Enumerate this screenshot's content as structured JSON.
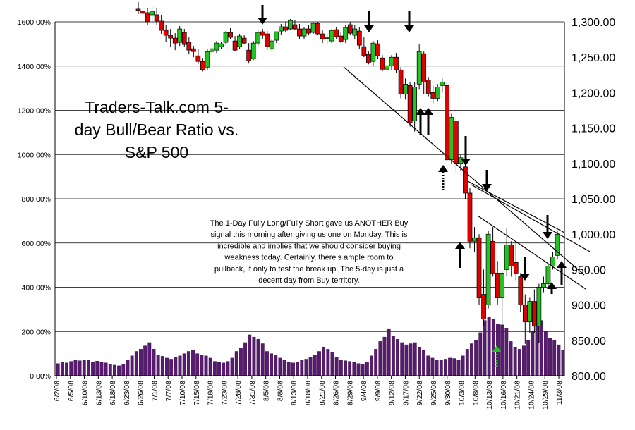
{
  "chart_data": {
    "type": "combo-candlestick-bar",
    "title_lines": [
      "Traders-Talk.com 5-",
      "day Bull/Bear Ratio vs.",
      "S&P 500"
    ],
    "annotation_lines": [
      "The 1-Day Fully Long/Fully Short gave us ANOTHER Buy",
      "signal this morning after giving us one on Monday. This is",
      "incredible and implies that we should consider buying",
      "weakness today. Certainly, there's ample room to",
      "pullback, if only to test the break up. The 5-day is just a",
      "decent day from Buy territory."
    ],
    "grid": true,
    "left_axis": {
      "min": 0,
      "max": 1600,
      "unit": "%",
      "ticks": [
        0,
        200,
        400,
        600,
        800,
        1000,
        1200,
        1400,
        1600
      ],
      "tick_labels": [
        "0.00%",
        "200.00%",
        "400.00%",
        "600.00%",
        "800.00%",
        "1000.00%",
        "1200.00%",
        "1400.00%",
        "1600.00%"
      ]
    },
    "right_axis": {
      "min": 800,
      "max": 1300,
      "ticks": [
        800,
        850,
        900,
        950,
        1000,
        1050,
        1100,
        1150,
        1200,
        1250,
        1300
      ],
      "tick_labels": [
        "800.00",
        "850.00",
        "900.00",
        "950.00",
        "1,000.00",
        "1,050.00",
        "1,100.00",
        "1,150.00",
        "1,200.00",
        "1,250.00",
        "1,300.00"
      ]
    },
    "x_tick_labels": [
      "6/2/08",
      "6/5/08",
      "6/10/08",
      "6/13/08",
      "6/18/08",
      "6/23/08",
      "6/26/08",
      "7/1/08",
      "7/7/08",
      "7/10/08",
      "7/15/08",
      "7/18/08",
      "7/23/08",
      "7/28/08",
      "7/31/08",
      "8/5/08",
      "8/8/08",
      "8/13/08",
      "8/18/08",
      "8/21/08",
      "8/26/08",
      "8/29/08",
      "9/4/08",
      "9/9/08",
      "9/12/08",
      "9/17/08",
      "9/22/08",
      "9/25/08",
      "9/30/08",
      "10/3/08",
      "10/8/08",
      "10/13/08",
      "10/16/08",
      "10/21/08",
      "10/24/08",
      "10/29/08",
      "11/3/08"
    ],
    "bull_bear_ratio_pct": [
      55,
      60,
      58,
      65,
      70,
      68,
      72,
      70,
      62,
      66,
      60,
      58,
      52,
      48,
      45,
      50,
      70,
      90,
      110,
      120,
      135,
      150,
      120,
      95,
      88,
      80,
      75,
      85,
      90,
      100,
      110,
      115,
      100,
      95,
      90,
      80,
      65,
      60,
      58,
      65,
      80,
      110,
      125,
      150,
      185,
      175,
      165,
      145,
      110,
      100,
      95,
      80,
      70,
      60,
      58,
      62,
      70,
      75,
      85,
      95,
      110,
      130,
      120,
      105,
      85,
      70,
      68,
      65,
      60,
      55,
      52,
      62,
      90,
      120,
      155,
      175,
      210,
      180,
      165,
      150,
      140,
      145,
      150,
      130,
      115,
      90,
      80,
      70,
      72,
      75,
      80,
      78,
      70,
      90,
      120,
      145,
      160,
      195,
      250,
      265,
      255,
      235,
      230,
      215,
      155,
      130,
      120,
      135,
      160,
      200,
      225,
      250,
      200,
      170,
      160,
      140,
      115
    ],
    "sp500_ohlc": [
      [
        1318,
        1328,
        1311,
        1316
      ],
      [
        1315,
        1327,
        1308,
        1312
      ],
      [
        1313,
        1320,
        1295,
        1300
      ],
      [
        1310,
        1322,
        1298,
        1315
      ],
      [
        1310,
        1320,
        1296,
        1301
      ],
      [
        1301,
        1310,
        1283,
        1288
      ],
      [
        1288,
        1296,
        1272,
        1281
      ],
      [
        1281,
        1290,
        1265,
        1277
      ],
      [
        1277,
        1284,
        1260,
        1270
      ],
      [
        1271,
        1294,
        1266,
        1290
      ],
      [
        1285,
        1290,
        1265,
        1268
      ],
      [
        1271,
        1278,
        1254,
        1260
      ],
      [
        1262,
        1266,
        1250,
        1258
      ],
      [
        1252,
        1262,
        1240,
        1244
      ],
      [
        1244,
        1249,
        1230,
        1232
      ],
      [
        1236,
        1262,
        1232,
        1258
      ],
      [
        1258,
        1265,
        1250,
        1262
      ],
      [
        1260,
        1273,
        1256,
        1270
      ],
      [
        1265,
        1272,
        1262,
        1269
      ],
      [
        1271,
        1287,
        1268,
        1285
      ],
      [
        1285,
        1291,
        1275,
        1278
      ],
      [
        1273,
        1280,
        1258,
        1260
      ],
      [
        1265,
        1283,
        1262,
        1280
      ],
      [
        1277,
        1282,
        1268,
        1270
      ],
      [
        1260,
        1270,
        1241,
        1245
      ],
      [
        1248,
        1273,
        1246,
        1270
      ],
      [
        1270,
        1288,
        1266,
        1285
      ],
      [
        1286,
        1290,
        1276,
        1281
      ],
      [
        1283,
        1287,
        1260,
        1265
      ],
      [
        1262,
        1276,
        1259,
        1273
      ],
      [
        1274,
        1286,
        1270,
        1286
      ],
      [
        1287,
        1297,
        1282,
        1293
      ],
      [
        1293,
        1300,
        1285,
        1288
      ],
      [
        1290,
        1304,
        1288,
        1302
      ],
      [
        1296,
        1302,
        1288,
        1290
      ],
      [
        1290,
        1297,
        1276,
        1280
      ],
      [
        1280,
        1293,
        1276,
        1290
      ],
      [
        1290,
        1296,
        1282,
        1284
      ],
      [
        1285,
        1300,
        1283,
        1298
      ],
      [
        1298,
        1300,
        1281,
        1283
      ],
      [
        1283,
        1288,
        1270,
        1276
      ],
      [
        1278,
        1283,
        1268,
        1278
      ],
      [
        1273,
        1290,
        1270,
        1288
      ],
      [
        1289,
        1293,
        1276,
        1279
      ],
      [
        1280,
        1285,
        1270,
        1272
      ],
      [
        1275,
        1296,
        1270,
        1292
      ],
      [
        1296,
        1300,
        1281,
        1284
      ],
      [
        1281,
        1296,
        1275,
        1290
      ],
      [
        1287,
        1292,
        1262,
        1267
      ],
      [
        1265,
        1278,
        1250,
        1252
      ],
      [
        1254,
        1258,
        1240,
        1242
      ],
      [
        1244,
        1273,
        1238,
        1270
      ],
      [
        1269,
        1274,
        1248,
        1252
      ],
      [
        1249,
        1253,
        1230,
        1233
      ],
      [
        1233,
        1245,
        1226,
        1238
      ],
      [
        1238,
        1253,
        1232,
        1250
      ],
      [
        1250,
        1256,
        1228,
        1232
      ],
      [
        1232,
        1236,
        1192,
        1198
      ],
      [
        1198,
        1220,
        1190,
        1212
      ],
      [
        1210,
        1215,
        1152,
        1157
      ],
      [
        1160,
        1215,
        1145,
        1208
      ],
      [
        1212,
        1268,
        1205,
        1258
      ],
      [
        1255,
        1258,
        1198,
        1215
      ],
      [
        1218,
        1222,
        1195,
        1198
      ],
      [
        1200,
        1210,
        1185,
        1192
      ],
      [
        1192,
        1212,
        1188,
        1208
      ],
      [
        1210,
        1220,
        1200,
        1215
      ],
      [
        1210,
        1215,
        1110,
        1105
      ],
      [
        1105,
        1170,
        1100,
        1165
      ],
      [
        1160,
        1165,
        1088,
        1100
      ],
      [
        1100,
        1112,
        1090,
        1108
      ],
      [
        1095,
        1100,
        1050,
        1058
      ],
      [
        1058,
        1065,
        980,
        990
      ],
      [
        990,
        1010,
        975,
        995
      ],
      [
        995,
        1000,
        900,
        910
      ],
      [
        915,
        950,
        870,
        880
      ],
      [
        900,
        1005,
        895,
        1000
      ],
      [
        990,
        1010,
        940,
        945
      ],
      [
        945,
        962,
        900,
        910
      ],
      [
        910,
        948,
        865,
        945
      ],
      [
        950,
        1008,
        940,
        985
      ],
      [
        985,
        990,
        940,
        955
      ],
      [
        960,
        990,
        935,
        945
      ],
      [
        940,
        945,
        890,
        900
      ],
      [
        900,
        915,
        845,
        876
      ],
      [
        876,
        910,
        860,
        905
      ],
      [
        905,
        922,
        860,
        870
      ],
      [
        870,
        930,
        846,
        925
      ],
      [
        925,
        940,
        918,
        930
      ],
      [
        930,
        958,
        925,
        955
      ],
      [
        955,
        975,
        950,
        968
      ],
      [
        970,
        1005,
        965,
        1000
      ]
    ]
  }
}
